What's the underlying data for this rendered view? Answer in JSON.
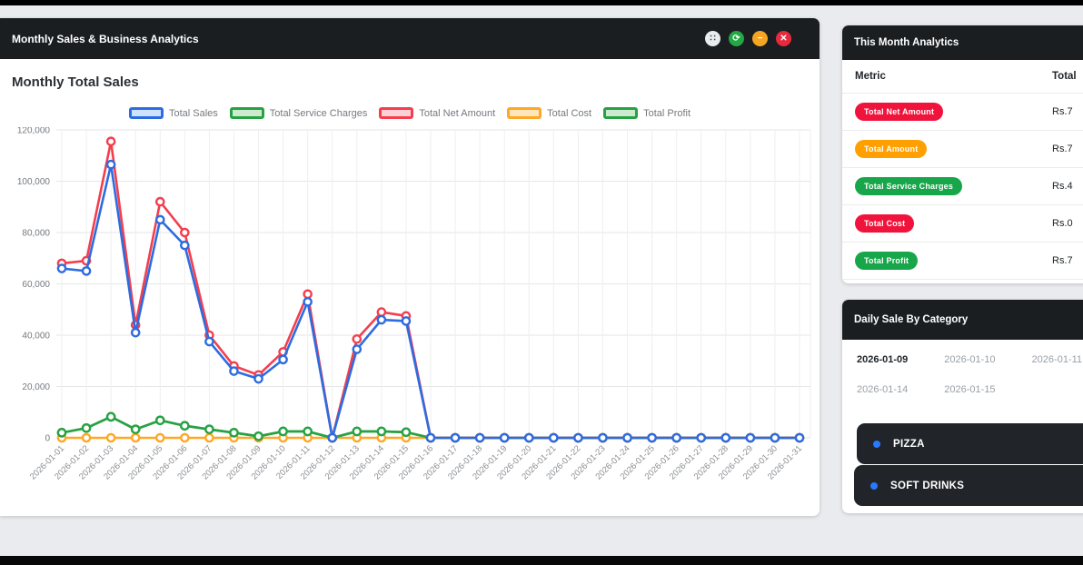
{
  "window": {
    "title": "Monthly Sales & Business Analytics",
    "controls": [
      {
        "name": "move",
        "glyph": "∷",
        "bg": "#e9ecef",
        "fg": "#343a40"
      },
      {
        "name": "refresh",
        "glyph": "⟳",
        "bg": "#23a845",
        "fg": "#ffffff"
      },
      {
        "name": "minimize",
        "glyph": "−",
        "bg": "#f5a522",
        "fg": "#ffffff"
      },
      {
        "name": "close",
        "glyph": "✕",
        "bg": "#e82a3e",
        "fg": "#ffffff"
      }
    ]
  },
  "chart_panel": {
    "heading": "Monthly Total Sales"
  },
  "chart_data": {
    "type": "line",
    "title": "Monthly Total Sales",
    "x": [
      "2026-01-01",
      "2026-01-02",
      "2026-01-03",
      "2026-01-04",
      "2026-01-05",
      "2026-01-06",
      "2026-01-07",
      "2026-01-08",
      "2026-01-09",
      "2026-01-10",
      "2026-01-11",
      "2026-01-12",
      "2026-01-13",
      "2026-01-14",
      "2026-01-15",
      "2026-01-16",
      "2026-01-17",
      "2026-01-18",
      "2026-01-19",
      "2026-01-20",
      "2026-01-21",
      "2026-01-22",
      "2026-01-23",
      "2026-01-24",
      "2026-01-25",
      "2026-01-26",
      "2026-01-27",
      "2026-01-28",
      "2026-01-29",
      "2026-01-30",
      "2026-01-31"
    ],
    "ylim": [
      0,
      120000
    ],
    "ytick_step": 20000,
    "grid": true,
    "legend_position": "top",
    "series": [
      {
        "name": "Total Sales",
        "color": "#2d6ce0",
        "fill": "#cfe2fd",
        "values": [
          66000,
          65000,
          106500,
          41000,
          85000,
          75000,
          37500,
          26000,
          23000,
          30500,
          53000,
          0,
          34500,
          46000,
          45500,
          0,
          0,
          0,
          0,
          0,
          0,
          0,
          0,
          0,
          0,
          0,
          0,
          0,
          0,
          0,
          0
        ]
      },
      {
        "name": "Total Service Charges",
        "color": "#27a243",
        "fill": "#cdeace",
        "values": [
          2000,
          3800,
          8200,
          3300,
          6800,
          4700,
          3300,
          2000,
          600,
          2500,
          2500,
          0,
          2500,
          2500,
          2200,
          0,
          0,
          0,
          0,
          0,
          0,
          0,
          0,
          0,
          0,
          0,
          0,
          0,
          0,
          0,
          0
        ]
      },
      {
        "name": "Total Net Amount",
        "color": "#f43e4e",
        "fill": "#fcd0d5",
        "values": [
          68000,
          69000,
          115500,
          44000,
          92000,
          80000,
          40000,
          28000,
          24500,
          33500,
          56000,
          0,
          38500,
          49000,
          47500,
          0,
          0,
          0,
          0,
          0,
          0,
          0,
          0,
          0,
          0,
          0,
          0,
          0,
          0,
          0,
          0
        ]
      },
      {
        "name": "Total Cost",
        "color": "#ffa726",
        "fill": "#ffe6ba",
        "values": [
          0,
          0,
          0,
          0,
          0,
          0,
          0,
          0,
          0,
          0,
          0,
          0,
          0,
          0,
          0,
          0,
          0,
          0,
          0,
          0,
          0,
          0,
          0,
          0,
          0,
          0,
          0,
          0,
          0,
          0,
          0
        ]
      },
      {
        "name": "Total Profit",
        "color": "#27a243",
        "fill": "#cdeace",
        "values": [
          2000,
          3800,
          8200,
          3300,
          6800,
          4700,
          3300,
          2000,
          600,
          2500,
          2500,
          0,
          2500,
          2500,
          2200,
          0,
          0,
          0,
          0,
          0,
          0,
          0,
          0,
          0,
          0,
          0,
          0,
          0,
          0,
          0,
          0
        ]
      }
    ]
  },
  "analytics_panel": {
    "title": "This Month Analytics",
    "columns": [
      "Metric",
      "Total"
    ],
    "rows": [
      {
        "metric": "Total Net Amount",
        "badge_color": "#f0143c",
        "value": "Rs.7"
      },
      {
        "metric": "Total Amount",
        "badge_color": "#ffa000",
        "value": "Rs.7"
      },
      {
        "metric": "Total Service Charges",
        "badge_color": "#17a64a",
        "value": "Rs.4"
      },
      {
        "metric": "Total Cost",
        "badge_color": "#f0143c",
        "value": "Rs.0"
      },
      {
        "metric": "Total Profit",
        "badge_color": "#17a64a",
        "value": "Rs.7"
      }
    ]
  },
  "category_panel": {
    "title": "Daily Sale By Category",
    "date_tabs": [
      {
        "label": "2026-01-09",
        "active": true
      },
      {
        "label": "2026-01-10",
        "active": false
      },
      {
        "label": "2026-01-11",
        "active": false
      },
      {
        "label": "2026-01-14",
        "active": false
      },
      {
        "label": "2026-01-15",
        "active": false
      }
    ],
    "items": [
      {
        "label": "PIZZA",
        "dot_color": "#2979ff"
      },
      {
        "label": "SOFT DRINKS",
        "dot_color": "#2979ff"
      }
    ]
  }
}
